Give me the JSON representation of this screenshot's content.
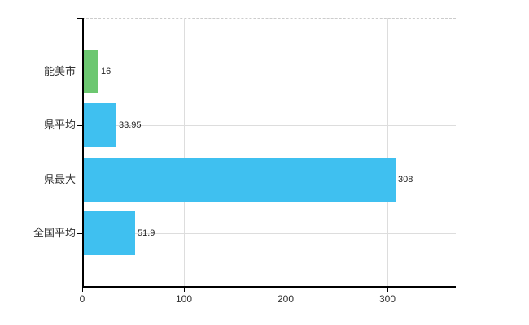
{
  "colors": {
    "background": "#ffffff",
    "highlight_bar": "#6cc770",
    "default_bar": "#3fc0f0",
    "gridline": "#dddddd",
    "top_border_dashed": "#cccccc",
    "axis": "#000000",
    "category_text": "#333333",
    "value_text": "#222222",
    "x_tick_text": "#333333"
  },
  "chart_data": {
    "type": "bar",
    "orientation": "horizontal",
    "title": "",
    "categories": [
      "能美市",
      "県平均",
      "県最大",
      "全国平均"
    ],
    "values": [
      16,
      33.95,
      308,
      51.9
    ],
    "value_labels": [
      "16",
      "33.95",
      "308",
      "51.9"
    ],
    "bar_colors": [
      "#6cc770",
      "#3fc0f0",
      "#3fc0f0",
      "#3fc0f0"
    ],
    "x_ticks": [
      0,
      100,
      200,
      300
    ],
    "x_tick_labels": [
      "0",
      "100",
      "200",
      "300"
    ],
    "xlim": [
      0,
      367
    ],
    "grid": true,
    "legend": "none"
  }
}
